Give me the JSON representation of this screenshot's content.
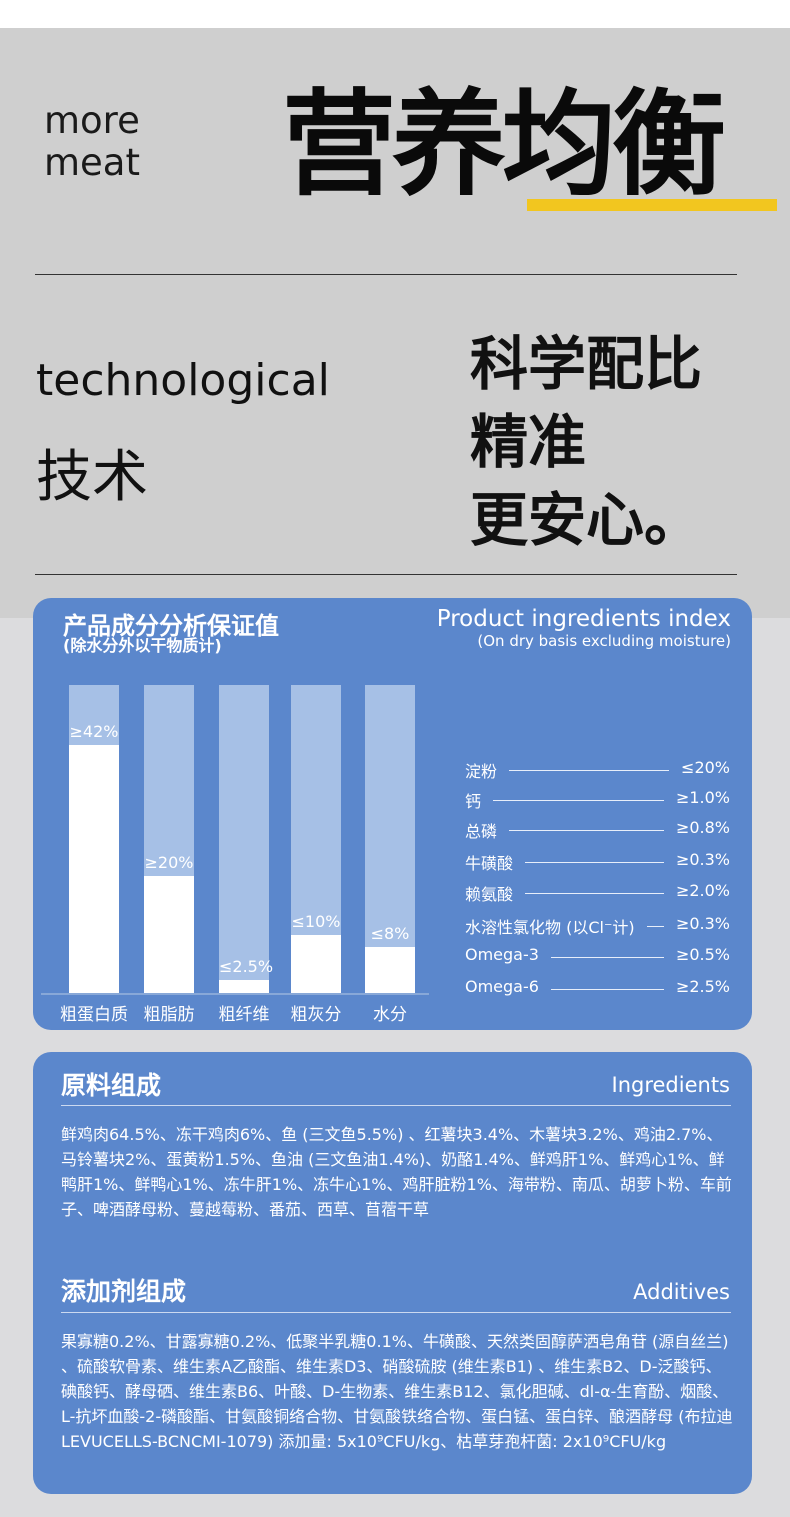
{
  "header": {
    "more_meat_line1": "more",
    "more_meat_line2": "meat",
    "title": "营养均衡",
    "accent_color": "#f2c61f"
  },
  "tech": {
    "en": "technological",
    "cn": "技术",
    "slogan_line1": "科学配比",
    "slogan_line2": "精准",
    "slogan_line3": "更安心。"
  },
  "analysis": {
    "title_cn": "产品成分分析保证值",
    "subtitle_cn": "(除水分外以干物质计)",
    "title_en": "Product ingredients index",
    "subtitle_en": "(On dry basis excluding moisture)",
    "rows": [
      {
        "label": "淀粉",
        "value": "≤20%"
      },
      {
        "label": "钙",
        "value": "≥1.0%"
      },
      {
        "label": "总磷",
        "value": "≥0.8%"
      },
      {
        "label": "牛磺酸",
        "value": "≥0.3%"
      },
      {
        "label": "赖氨酸",
        "value": "≥2.0%"
      },
      {
        "label": "水溶性氯化物 (以Cl⁻计)",
        "value": "≥0.3%"
      },
      {
        "label": "Omega-3",
        "value": "≥0.5%"
      },
      {
        "label": "Omega-6",
        "value": "≥2.5%"
      }
    ]
  },
  "chart_data": {
    "type": "bar",
    "categories": [
      "粗蛋白质",
      "粗脂肪",
      "粗纤维",
      "粗灰分",
      "水分"
    ],
    "values": [
      42,
      20,
      2.5,
      10,
      8
    ],
    "value_labels": [
      "≥42%",
      "≥20%",
      "≤2.5%",
      "≤10%",
      "≤8%"
    ],
    "ylim": [
      0,
      52
    ],
    "colors": {
      "fill": "#ffffff",
      "track": "#a6c0e6"
    }
  },
  "ingredients": {
    "title_cn": "原料组成",
    "title_en": "Ingredients",
    "text": "鲜鸡肉64.5%、冻干鸡肉6%、鱼 (三文鱼5.5%) 、红薯块3.4%、木薯块3.2%、鸡油2.7%、马铃薯块2%、蛋黄粉1.5%、鱼油 (三文鱼油1.4%)、奶酪1.4%、鲜鸡肝1%、鲜鸡心1%、鲜鸭肝1%、鲜鸭心1%、冻牛肝1%、冻牛心1%、鸡肝脏粉1%、海带粉、南瓜、胡萝卜粉、车前子、啤酒酵母粉、蔓越莓粉、番茄、西草、苜蓿干草"
  },
  "additives": {
    "title_cn": "添加剂组成",
    "title_en": "Additives",
    "text": "果寡糖0.2%、甘露寡糖0.2%、低聚半乳糖0.1%、牛磺酸、天然类固醇萨洒皂角苷 (源自丝兰) 、硫酸软骨素、维生素A乙酸酯、维生素D3、硝酸硫胺 (维生素B1) 、维生素B2、D-泛酸钙、碘酸钙、酵母硒、维生素B6、叶酸、D-生物素、维生素B12、氯化胆碱、dl-α-生育酚、烟酸、L-抗坏血酸-2-磷酸酯、甘氨酸铜络合物、甘氨酸铁络合物、蛋白锰、蛋白锌、酿酒酵母 (布拉迪 LEVUCELLS-BCNCMI-1079) 添加量: 5x10⁹CFU/kg、枯草芽孢杆菌: 2x10⁹CFU/kg"
  }
}
